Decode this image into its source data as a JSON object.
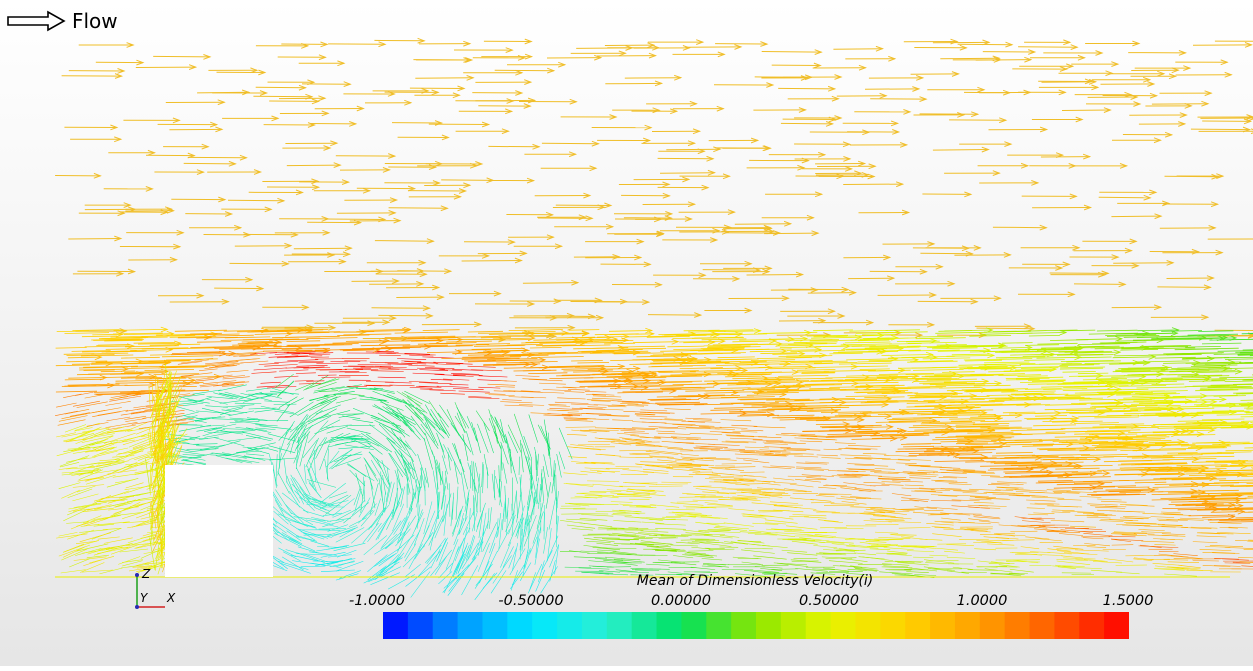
{
  "flow_label": "Flow",
  "legend": {
    "title": "Mean of Dimensionless Velocity(i)",
    "ticks": [
      "-1.0000",
      "-0.50000",
      "0.00000",
      "0.50000",
      "1.0000",
      "1.5000"
    ],
    "range": [
      -1.0,
      1.5
    ]
  },
  "axes_triad": {
    "z": "Z",
    "y": "Y",
    "x": "X"
  },
  "colors": {
    "colormap": [
      "#0000ff",
      "#0096ff",
      "#00e6ff",
      "#2af0d2",
      "#00e060",
      "#8ce600",
      "#e6f500",
      "#ffd200",
      "#ffa000",
      "#ff5a00",
      "#ff0000"
    ],
    "background_bottom": "#e6e6e6",
    "background_top": "#ffffff"
  }
}
